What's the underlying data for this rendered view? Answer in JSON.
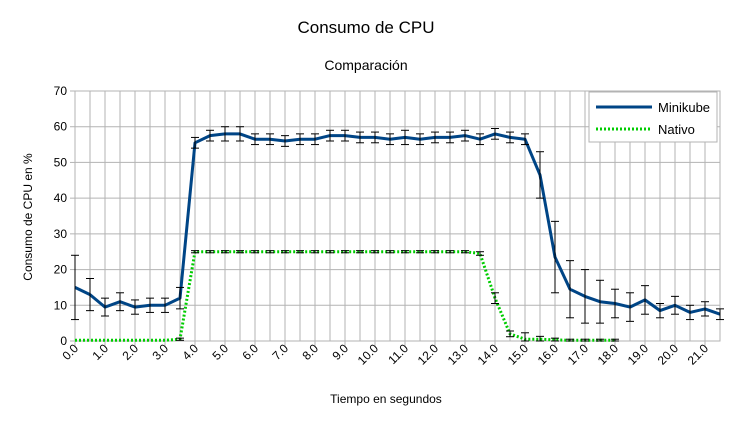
{
  "chart_data": {
    "type": "line",
    "title": "Consumo de CPU",
    "subtitle": "Comparación",
    "xlabel": "Tiempo en segundos",
    "ylabel": "Consumo de CPU en %",
    "ylim": [
      0,
      70
    ],
    "yticks": [
      0,
      10,
      20,
      30,
      40,
      50,
      60,
      70
    ],
    "xlim": [
      0,
      21.5
    ],
    "xtick_values": [
      0,
      1,
      2,
      3,
      4,
      5,
      6,
      7,
      8,
      9,
      10,
      11,
      12,
      13,
      14,
      15,
      16,
      17,
      18,
      19,
      20,
      21
    ],
    "xtick_labels": [
      "0.0",
      "1.0",
      "2.0",
      "3.0",
      "4.0",
      "5.0",
      "6.0",
      "7.0",
      "8.0",
      "9.0",
      "10.0",
      "11.0",
      "12.0",
      "13.0",
      "14.0",
      "15.0",
      "16.0",
      "17.0",
      "18.0",
      "19.0",
      "20.0",
      "21.0"
    ],
    "grid": true,
    "legend_position": "top-right",
    "series": [
      {
        "name": "Minikube",
        "color": "#004586",
        "style": "solid",
        "x": [
          0,
          0.5,
          1,
          1.5,
          2,
          2.5,
          3,
          3.5,
          4,
          4.5,
          5,
          5.5,
          6,
          6.5,
          7,
          7.5,
          8,
          8.5,
          9,
          9.5,
          10,
          10.5,
          11,
          11.5,
          12,
          12.5,
          13,
          13.5,
          14,
          14.5,
          15,
          15.5,
          16,
          16.5,
          17,
          17.5,
          18,
          18.5,
          19,
          19.5,
          20,
          20.5,
          21,
          21.5
        ],
        "values": [
          15,
          13,
          9.5,
          11,
          9.5,
          10,
          10,
          12,
          55.5,
          57.5,
          58,
          58,
          56.5,
          56.5,
          56,
          56.5,
          56.5,
          57.5,
          57.5,
          57,
          57,
          56.5,
          57,
          56.5,
          57,
          57,
          57.5,
          56.5,
          58,
          57,
          56.5,
          46.5,
          23.5,
          14.5,
          12.5,
          11,
          10.5,
          9.5,
          11.5,
          8.5,
          10,
          8,
          9,
          7.5
        ],
        "error": [
          9,
          4.5,
          2.5,
          2.5,
          2,
          2,
          2,
          3,
          1.5,
          1.5,
          2,
          2,
          1.5,
          1.5,
          1.5,
          1.5,
          1.5,
          1.5,
          1.5,
          1.5,
          1.5,
          1.5,
          2,
          1.5,
          1.5,
          1.5,
          1.5,
          1.5,
          1.5,
          1.5,
          1.5,
          6.5,
          10,
          8,
          7.5,
          6,
          4,
          4,
          4,
          2,
          2.5,
          2,
          2,
          1.5
        ]
      },
      {
        "name": "Nativo",
        "color": "#00cc00",
        "style": "dotted",
        "x": [
          0,
          0.5,
          1,
          1.5,
          2,
          2.5,
          3,
          3.5,
          4,
          4.5,
          5,
          5.5,
          6,
          6.5,
          7,
          7.5,
          8,
          8.5,
          9,
          9.5,
          10,
          10.5,
          11,
          11.5,
          12,
          12.5,
          13,
          13.5,
          14,
          14.5,
          15,
          15.5,
          16,
          16.5,
          17,
          17.5,
          18
        ],
        "values": [
          0.2,
          0.2,
          0.2,
          0.2,
          0.2,
          0.2,
          0.2,
          0.5,
          25,
          25,
          25,
          25,
          25,
          25,
          25,
          25,
          25,
          25,
          25,
          25,
          25,
          25,
          25,
          25,
          25,
          25,
          25,
          24.5,
          12,
          2,
          0.5,
          0.5,
          0.3,
          0.2,
          0.2,
          0.2,
          0.2
        ],
        "error": [
          0,
          0,
          0,
          0,
          0,
          0,
          0,
          0.3,
          0.3,
          0.3,
          0.3,
          0.3,
          0.3,
          0.3,
          0.3,
          0.3,
          0.3,
          0.3,
          0.3,
          0.3,
          0.3,
          0.3,
          0.3,
          0.3,
          0.3,
          0.3,
          0.3,
          0.5,
          1.5,
          0.8,
          1.8,
          0.8,
          0.5,
          0.3,
          0.3,
          0.3,
          0.3
        ]
      }
    ]
  }
}
